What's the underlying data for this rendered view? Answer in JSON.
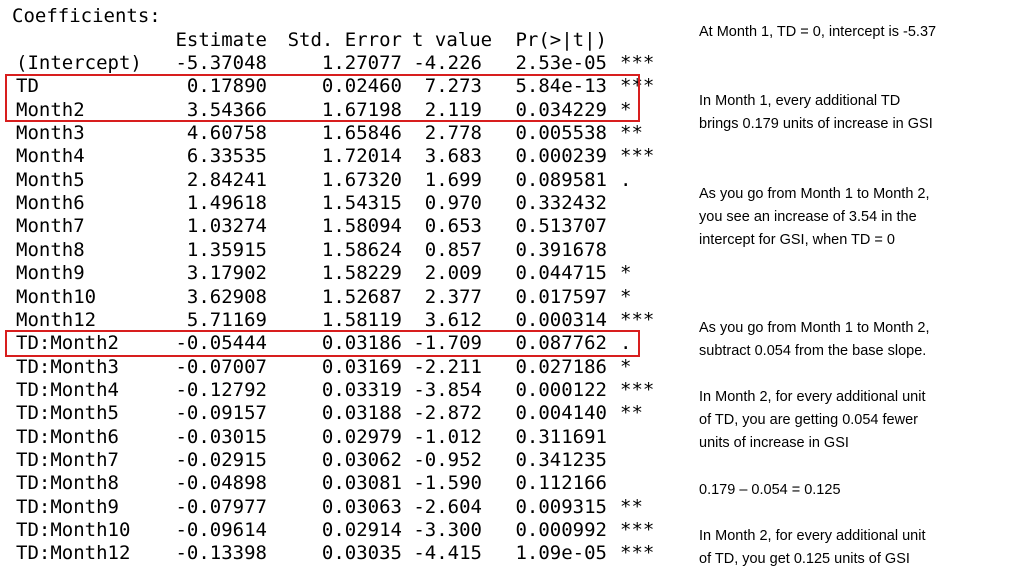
{
  "coefficients": {
    "heading": "Coefficients:",
    "columns": [
      "Estimate",
      "Std. Error",
      "t value",
      "Pr(>|t|)"
    ],
    "rows": [
      {
        "name": "(Intercept)",
        "estimate": "-5.37048",
        "std_error": "1.27077",
        "t_value": "-4.226",
        "p_value": "2.53e-05",
        "signif": "***"
      },
      {
        "name": "TD",
        "estimate": "0.17890",
        "std_error": "0.02460",
        "t_value": "7.273",
        "p_value": "5.84e-13",
        "signif": "***"
      },
      {
        "name": "Month2",
        "estimate": "3.54366",
        "std_error": "1.67198",
        "t_value": "2.119",
        "p_value": "0.034229",
        "signif": "*"
      },
      {
        "name": "Month3",
        "estimate": "4.60758",
        "std_error": "1.65846",
        "t_value": "2.778",
        "p_value": "0.005538",
        "signif": "**"
      },
      {
        "name": "Month4",
        "estimate": "6.33535",
        "std_error": "1.72014",
        "t_value": "3.683",
        "p_value": "0.000239",
        "signif": "***"
      },
      {
        "name": "Month5",
        "estimate": "2.84241",
        "std_error": "1.67320",
        "t_value": "1.699",
        "p_value": "0.089581",
        "signif": "."
      },
      {
        "name": "Month6",
        "estimate": "1.49618",
        "std_error": "1.54315",
        "t_value": "0.970",
        "p_value": "0.332432",
        "signif": ""
      },
      {
        "name": "Month7",
        "estimate": "1.03274",
        "std_error": "1.58094",
        "t_value": "0.653",
        "p_value": "0.513707",
        "signif": ""
      },
      {
        "name": "Month8",
        "estimate": "1.35915",
        "std_error": "1.58624",
        "t_value": "0.857",
        "p_value": "0.391678",
        "signif": ""
      },
      {
        "name": "Month9",
        "estimate": "3.17902",
        "std_error": "1.58229",
        "t_value": "2.009",
        "p_value": "0.044715",
        "signif": "*"
      },
      {
        "name": "Month10",
        "estimate": "3.62908",
        "std_error": "1.52687",
        "t_value": "2.377",
        "p_value": "0.017597",
        "signif": "*"
      },
      {
        "name": "Month12",
        "estimate": "5.71169",
        "std_error": "1.58119",
        "t_value": "3.612",
        "p_value": "0.000314",
        "signif": "***"
      },
      {
        "name": "TD:Month2",
        "estimate": "-0.05444",
        "std_error": "0.03186",
        "t_value": "-1.709",
        "p_value": "0.087762",
        "signif": "."
      },
      {
        "name": "TD:Month3",
        "estimate": "-0.07007",
        "std_error": "0.03169",
        "t_value": "-2.211",
        "p_value": "0.027186",
        "signif": "*"
      },
      {
        "name": "TD:Month4",
        "estimate": "-0.12792",
        "std_error": "0.03319",
        "t_value": "-3.854",
        "p_value": "0.000122",
        "signif": "***"
      },
      {
        "name": "TD:Month5",
        "estimate": "-0.09157",
        "std_error": "0.03188",
        "t_value": "-2.872",
        "p_value": "0.004140",
        "signif": "**"
      },
      {
        "name": "TD:Month6",
        "estimate": "-0.03015",
        "std_error": "0.02979",
        "t_value": "-1.012",
        "p_value": "0.311691",
        "signif": ""
      },
      {
        "name": "TD:Month7",
        "estimate": "-0.02915",
        "std_error": "0.03062",
        "t_value": "-0.952",
        "p_value": "0.341235",
        "signif": ""
      },
      {
        "name": "TD:Month8",
        "estimate": "-0.04898",
        "std_error": "0.03081",
        "t_value": "-1.590",
        "p_value": "0.112166",
        "signif": ""
      },
      {
        "name": "TD:Month9",
        "estimate": "-0.07977",
        "std_error": "0.03063",
        "t_value": "-2.604",
        "p_value": "0.009315",
        "signif": "**"
      },
      {
        "name": "TD:Month10",
        "estimate": "-0.09614",
        "std_error": "0.02914",
        "t_value": "-3.300",
        "p_value": "0.000992",
        "signif": "***"
      },
      {
        "name": "TD:Month12",
        "estimate": "-0.13398",
        "std_error": "0.03035",
        "t_value": "-4.415",
        "p_value": "1.09e-05",
        "signif": "***"
      }
    ]
  },
  "highlight_color": "#d81e1e",
  "notes": [
    {
      "lines": [
        "At Month 1, TD = 0, intercept is -5.37"
      ]
    },
    {
      "lines": [
        "In Month 1, every additional TD",
        "brings 0.179 units of increase in GSI"
      ]
    },
    {
      "lines": [
        "As you go from Month 1 to Month 2,",
        "you see an increase of 3.54 in the",
        "intercept for GSI, when TD = 0"
      ]
    },
    {
      "lines": [
        "As you go from Month 1 to Month 2,",
        "subtract 0.054 from the base slope."
      ]
    },
    {
      "lines": [
        "In Month 2, for every additional unit",
        "of TD, you are getting 0.054 fewer",
        "units of increase in GSI"
      ]
    },
    {
      "lines": [
        "0.179 – 0.054 = 0.125"
      ]
    },
    {
      "lines": [
        "In Month 2, for every additional unit",
        "of TD, you get 0.125 units of GSI"
      ]
    }
  ]
}
